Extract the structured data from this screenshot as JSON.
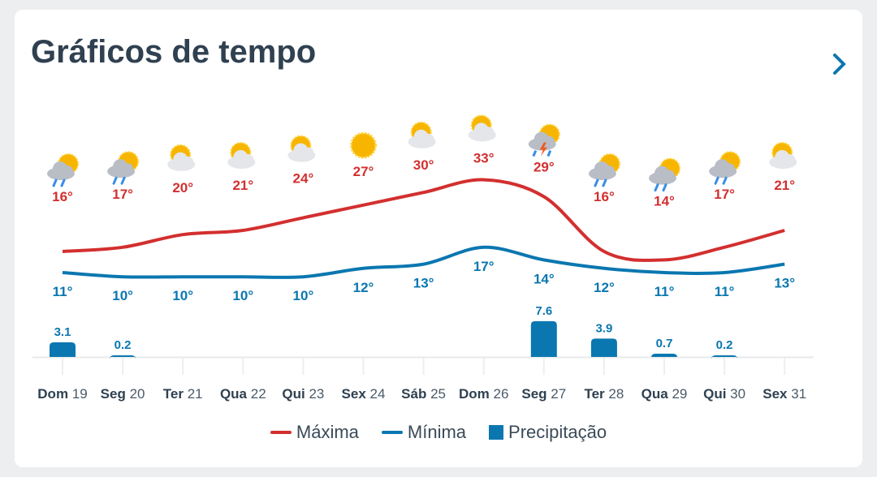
{
  "header": {
    "title": "Gráficos de tempo",
    "next_icon": "chevron-right-icon"
  },
  "colors": {
    "max": "#d32f2f",
    "min": "#0a77b0",
    "precip": "#0a77b0"
  },
  "legend": {
    "max": "Máxima",
    "min": "Mínima",
    "precip": "Precipitação"
  },
  "chart_data": {
    "type": "line",
    "categories": [
      [
        "Dom",
        "19"
      ],
      [
        "Seg",
        "20"
      ],
      [
        "Ter",
        "21"
      ],
      [
        "Qua",
        "22"
      ],
      [
        "Qui",
        "23"
      ],
      [
        "Sex",
        "24"
      ],
      [
        "Sáb",
        "25"
      ],
      [
        "Dom",
        "26"
      ],
      [
        "Seg",
        "27"
      ],
      [
        "Ter",
        "28"
      ],
      [
        "Qua",
        "29"
      ],
      [
        "Qui",
        "30"
      ],
      [
        "Sex",
        "31"
      ]
    ],
    "icons": [
      "rain-partly-sunny",
      "rain-partly-sunny",
      "partly-cloudy",
      "partly-cloudy",
      "partly-cloudy",
      "sunny",
      "partly-cloudy",
      "partly-cloudy",
      "thunderstorm",
      "rain",
      "rain",
      "rain",
      "partly-cloudy"
    ],
    "series": [
      {
        "name": "Máxima",
        "values": [
          16,
          17,
          20,
          21,
          24,
          27,
          30,
          33,
          29,
          16,
          14,
          17,
          21
        ]
      },
      {
        "name": "Mínima",
        "values": [
          11,
          10,
          10,
          10,
          10,
          12,
          13,
          17,
          14,
          12,
          11,
          11,
          13
        ]
      },
      {
        "name": "Precipitação",
        "type": "bar",
        "values": [
          3.1,
          0.2,
          null,
          null,
          null,
          null,
          null,
          null,
          7.6,
          3.9,
          0.7,
          0.2,
          null
        ]
      }
    ]
  }
}
